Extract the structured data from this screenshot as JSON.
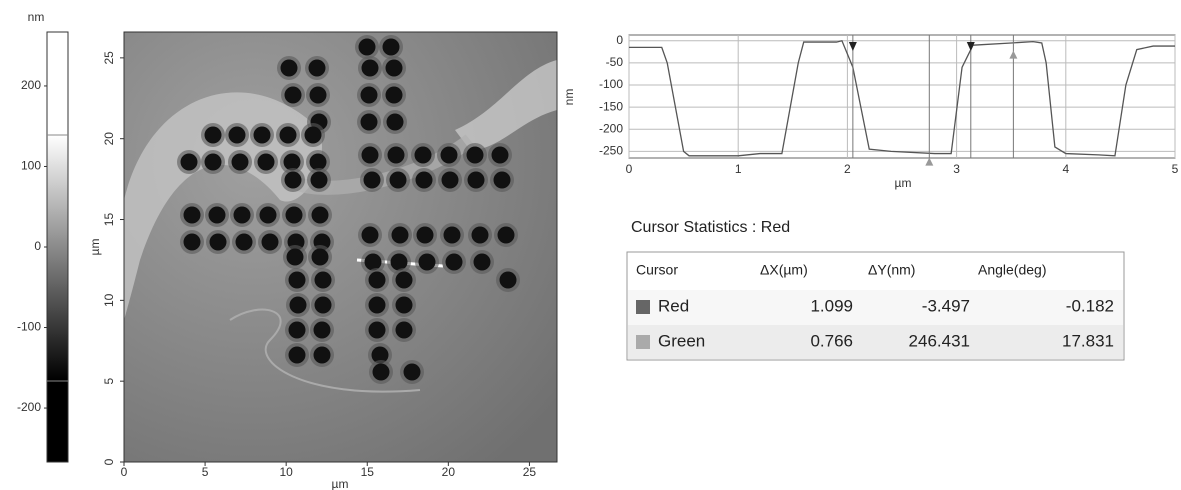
{
  "chart_data": [
    {
      "type": "colorbar",
      "title": "nm",
      "ylim": [
        -267,
        267
      ],
      "yticks": [
        -200,
        -100,
        0,
        100,
        200
      ]
    },
    {
      "type": "image",
      "xlabel": "µm",
      "ylabel": "µm",
      "xlim": [
        0,
        26.7
      ],
      "ylim": [
        0,
        26.6
      ],
      "xticks": [
        0,
        5,
        10,
        15,
        20,
        25
      ],
      "yticks": [
        0,
        5,
        10,
        15,
        20,
        25
      ]
    },
    {
      "type": "line",
      "xlabel": "µm",
      "ylabel": "nm",
      "xlim": [
        0,
        5
      ],
      "ylim": [
        -265,
        13
      ],
      "xticks": [
        0,
        1,
        2,
        3,
        4,
        5
      ],
      "yticks": [
        0,
        -50,
        -100,
        -150,
        -200,
        -250
      ],
      "grid": true,
      "color": "#555555",
      "x": [
        0,
        0.3,
        0.35,
        0.5,
        0.55,
        1.0,
        1.2,
        1.4,
        1.55,
        1.6,
        1.9,
        1.95,
        2.0,
        2.05,
        2.2,
        2.4,
        2.8,
        2.95,
        3.05,
        3.15,
        3.5,
        3.7,
        3.78,
        3.82,
        3.9,
        4.0,
        4.3,
        4.45,
        4.55,
        4.65,
        4.8,
        5
      ],
      "values": [
        -15,
        -15,
        -50,
        -250,
        -260,
        -260,
        -255,
        -255,
        -50,
        -3,
        -3,
        0,
        -30,
        -60,
        -245,
        -250,
        -255,
        -255,
        -60,
        -10,
        -5,
        -2,
        -5,
        -50,
        -240,
        -255,
        -258,
        -260,
        -100,
        -20,
        -12,
        -12
      ],
      "markers": [
        {
          "x": 2.05,
          "y": -5,
          "color": "#222222",
          "shape": "down"
        },
        {
          "x": 3.13,
          "y": -5,
          "color": "#222222",
          "shape": "down"
        },
        {
          "x": 2.75,
          "y": -262,
          "color": "#999999",
          "shape": "up"
        },
        {
          "x": 3.52,
          "y": -20,
          "color": "#999999",
          "shape": "up"
        }
      ]
    }
  ],
  "table": {
    "title": "Cursor Statistics : Red",
    "header": [
      "Cursor",
      "ΔX(µm)",
      "ΔY(nm)",
      "Angle(deg)"
    ],
    "rows": [
      [
        "Red",
        "1.099",
        "-3.497",
        "-0.182"
      ],
      [
        "Green",
        "0.766",
        "246.431",
        "17.831"
      ]
    ],
    "swatches": [
      "#666666",
      "#aaaaaa"
    ]
  }
}
